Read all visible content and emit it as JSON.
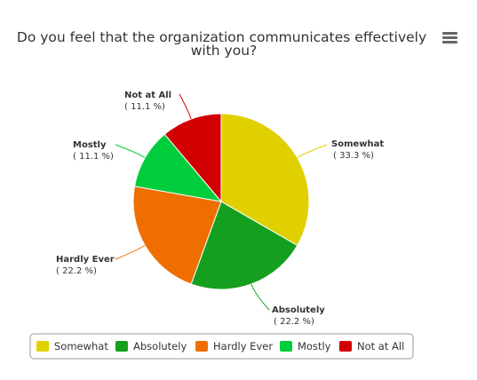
{
  "menu": {
    "icon": "hamburger-menu-icon"
  },
  "chart_data": {
    "type": "pie",
    "title": "Do you feel that the organization communicates effectively with you?",
    "title_lines": [
      "Do you feel that the organization communicates effectively",
      "with you?"
    ],
    "categories": [
      "Somewhat",
      "Absolutely",
      "Hardly Ever",
      "Mostly",
      "Not at All"
    ],
    "values": [
      33.3,
      22.2,
      22.2,
      11.1,
      11.1
    ],
    "value_labels": [
      "( 33.3 %)",
      "( 22.2 %)",
      "( 22.2 %)",
      "( 11.1 %)",
      "( 11.1 %)"
    ],
    "colors": [
      "#e1d000",
      "#14a01e",
      "#ee6e00",
      "#00cd3c",
      "#d20000"
    ],
    "legend_placement": "bottom"
  }
}
